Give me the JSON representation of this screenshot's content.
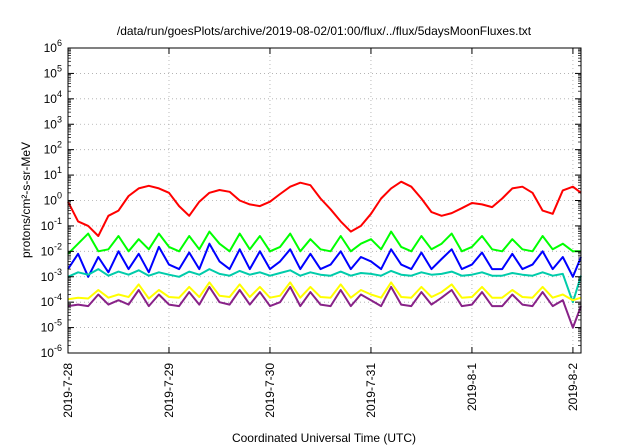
{
  "chart_data": {
    "type": "line",
    "title": "/data/run/goesPlots/archive/2019-08-02/01:00/flux/../flux/5daysMoonFluxes.txt",
    "xlabel": "Coordinated Universal Time (UTC)",
    "ylabel": "protons/cm²-s-sr-MeV",
    "yscale": "log",
    "ylim": [
      1e-06,
      1000000.0
    ],
    "yticks": [
      {
        "base": "10",
        "exp": "-6"
      },
      {
        "base": "10",
        "exp": "-5"
      },
      {
        "base": "10",
        "exp": "-4"
      },
      {
        "base": "10",
        "exp": "-3"
      },
      {
        "base": "10",
        "exp": "-2"
      },
      {
        "base": "10",
        "exp": "-1"
      },
      {
        "base": "10",
        "exp": "0"
      },
      {
        "base": "10",
        "exp": "1"
      },
      {
        "base": "10",
        "exp": "2"
      },
      {
        "base": "10",
        "exp": "3"
      },
      {
        "base": "10",
        "exp": "4"
      },
      {
        "base": "10",
        "exp": "5"
      },
      {
        "base": "10",
        "exp": "6"
      }
    ],
    "xlim_days": [
      0,
      5.08
    ],
    "xticks": [
      "2019-7-28",
      "2019-7-29",
      "2019-7-30",
      "2019-7-31",
      "2019-8-1",
      "2019-8-2"
    ],
    "grid": true,
    "series": [
      {
        "color": "#ff0000",
        "x": [
          0,
          0.1,
          0.2,
          0.3,
          0.4,
          0.5,
          0.6,
          0.7,
          0.8,
          0.9,
          1.0,
          1.1,
          1.2,
          1.3,
          1.4,
          1.5,
          1.6,
          1.7,
          1.8,
          1.9,
          2.0,
          2.1,
          2.2,
          2.3,
          2.4,
          2.5,
          2.6,
          2.7,
          2.8,
          2.9,
          3.0,
          3.1,
          3.2,
          3.3,
          3.4,
          3.5,
          3.6,
          3.7,
          3.8,
          3.9,
          4.0,
          4.1,
          4.2,
          4.3,
          4.4,
          4.5,
          4.6,
          4.7,
          4.8,
          4.9,
          5.0,
          5.08
        ],
        "values": [
          0.9,
          0.15,
          0.1,
          0.04,
          0.25,
          0.4,
          1.5,
          3,
          3.8,
          3,
          2,
          0.6,
          0.25,
          0.9,
          2,
          2.6,
          2.2,
          1,
          0.7,
          0.6,
          0.9,
          1.8,
          3.5,
          5,
          4,
          1.2,
          0.45,
          0.15,
          0.06,
          0.1,
          0.3,
          1.2,
          3,
          5.5,
          3.5,
          1.2,
          0.35,
          0.25,
          0.32,
          0.5,
          0.8,
          0.7,
          0.55,
          1.2,
          3,
          3.5,
          2,
          0.4,
          0.3,
          2.5,
          3.5,
          2
        ]
      },
      {
        "color": "#00ff00",
        "x": [
          0,
          0.1,
          0.2,
          0.3,
          0.4,
          0.5,
          0.6,
          0.7,
          0.8,
          0.9,
          1.0,
          1.1,
          1.2,
          1.3,
          1.4,
          1.5,
          1.6,
          1.7,
          1.8,
          1.9,
          2.0,
          2.1,
          2.2,
          2.3,
          2.4,
          2.5,
          2.6,
          2.7,
          2.8,
          2.9,
          3.0,
          3.1,
          3.2,
          3.3,
          3.4,
          3.5,
          3.6,
          3.7,
          3.8,
          3.9,
          4.0,
          4.1,
          4.2,
          4.3,
          4.4,
          4.5,
          4.6,
          4.7,
          4.8,
          4.9,
          5.0,
          5.08
        ],
        "values": [
          0.008,
          0.02,
          0.05,
          0.01,
          0.012,
          0.04,
          0.01,
          0.03,
          0.012,
          0.05,
          0.015,
          0.01,
          0.04,
          0.012,
          0.06,
          0.02,
          0.01,
          0.05,
          0.012,
          0.04,
          0.01,
          0.015,
          0.05,
          0.01,
          0.03,
          0.012,
          0.01,
          0.04,
          0.01,
          0.02,
          0.03,
          0.012,
          0.06,
          0.015,
          0.01,
          0.04,
          0.012,
          0.02,
          0.05,
          0.01,
          0.015,
          0.04,
          0.012,
          0.01,
          0.03,
          0.012,
          0.01,
          0.04,
          0.012,
          0.02,
          0.01,
          0.01
        ]
      },
      {
        "color": "#0000ff",
        "x": [
          0,
          0.1,
          0.2,
          0.3,
          0.4,
          0.5,
          0.6,
          0.7,
          0.8,
          0.9,
          1.0,
          1.1,
          1.2,
          1.3,
          1.4,
          1.5,
          1.6,
          1.7,
          1.8,
          1.9,
          2.0,
          2.1,
          2.2,
          2.3,
          2.4,
          2.5,
          2.6,
          2.7,
          2.8,
          2.9,
          3.0,
          3.1,
          3.2,
          3.3,
          3.4,
          3.5,
          3.6,
          3.7,
          3.8,
          3.9,
          4.0,
          4.1,
          4.2,
          4.3,
          4.4,
          4.5,
          4.6,
          4.7,
          4.8,
          4.9,
          5.0,
          5.08
        ],
        "values": [
          0.002,
          0.008,
          0.001,
          0.006,
          0.0015,
          0.01,
          0.002,
          0.008,
          0.0015,
          0.015,
          0.003,
          0.002,
          0.009,
          0.002,
          0.02,
          0.004,
          0.002,
          0.012,
          0.002,
          0.01,
          0.002,
          0.004,
          0.012,
          0.002,
          0.008,
          0.002,
          0.003,
          0.01,
          0.002,
          0.006,
          0.004,
          0.002,
          0.012,
          0.003,
          0.002,
          0.009,
          0.002,
          0.005,
          0.012,
          0.002,
          0.003,
          0.009,
          0.002,
          0.002,
          0.008,
          0.002,
          0.003,
          0.01,
          0.002,
          0.006,
          0.001,
          0.006
        ]
      },
      {
        "color": "#00ccaa",
        "x": [
          0,
          0.1,
          0.2,
          0.3,
          0.4,
          0.5,
          0.6,
          0.7,
          0.8,
          0.9,
          1.0,
          1.1,
          1.2,
          1.3,
          1.4,
          1.5,
          1.6,
          1.7,
          1.8,
          1.9,
          2.0,
          2.1,
          2.2,
          2.3,
          2.4,
          2.5,
          2.6,
          2.7,
          2.8,
          2.9,
          3.0,
          3.1,
          3.2,
          3.3,
          3.4,
          3.5,
          3.6,
          3.7,
          3.8,
          3.9,
          4.0,
          4.1,
          4.2,
          4.3,
          4.4,
          4.5,
          4.6,
          4.7,
          4.8,
          4.9,
          5.0,
          5.08
        ],
        "values": [
          0.001,
          0.0015,
          0.0012,
          0.002,
          0.0011,
          0.0016,
          0.0012,
          0.0018,
          0.0011,
          0.0015,
          0.0012,
          0.001,
          0.0016,
          0.0012,
          0.002,
          0.0013,
          0.0011,
          0.0017,
          0.0012,
          0.0015,
          0.0011,
          0.0014,
          0.0018,
          0.0011,
          0.0015,
          0.0012,
          0.0011,
          0.0016,
          0.0011,
          0.0014,
          0.0013,
          0.0011,
          0.0017,
          0.0012,
          0.0011,
          0.0015,
          0.0012,
          0.0013,
          0.0016,
          0.0011,
          0.0012,
          0.0015,
          0.0011,
          0.0011,
          0.0014,
          0.0012,
          0.0011,
          0.0015,
          0.0011,
          0.0013,
          0.0001,
          0.0011
        ]
      },
      {
        "color": "#ffff00",
        "x": [
          0,
          0.1,
          0.2,
          0.3,
          0.4,
          0.5,
          0.6,
          0.7,
          0.8,
          0.9,
          1.0,
          1.1,
          1.2,
          1.3,
          1.4,
          1.5,
          1.6,
          1.7,
          1.8,
          1.9,
          2.0,
          2.1,
          2.2,
          2.3,
          2.4,
          2.5,
          2.6,
          2.7,
          2.8,
          2.9,
          3.0,
          3.1,
          3.2,
          3.3,
          3.4,
          3.5,
          3.6,
          3.7,
          3.8,
          3.9,
          4.0,
          4.1,
          4.2,
          4.3,
          4.4,
          4.5,
          4.6,
          4.7,
          4.8,
          4.9,
          5.0,
          5.08
        ],
        "values": [
          0.00013,
          0.00015,
          0.00014,
          0.0003,
          0.00015,
          0.0002,
          0.00016,
          0.0005,
          0.00014,
          0.0003,
          0.00016,
          0.00015,
          0.0004,
          0.00016,
          0.0006,
          0.00018,
          0.00016,
          0.0005,
          0.00016,
          0.0004,
          0.00015,
          0.00018,
          0.0006,
          0.00015,
          0.0004,
          0.00016,
          0.00015,
          0.0005,
          0.00015,
          0.0003,
          0.0002,
          0.00015,
          0.0006,
          0.00016,
          0.00015,
          0.0004,
          0.00016,
          0.00025,
          0.0005,
          0.00015,
          0.00016,
          0.0004,
          0.00015,
          0.00015,
          0.0003,
          0.00016,
          0.00015,
          0.0004,
          0.00015,
          0.0002,
          0.00012,
          0.00015
        ]
      },
      {
        "color": "#882288",
        "x": [
          0,
          0.1,
          0.2,
          0.3,
          0.4,
          0.5,
          0.6,
          0.7,
          0.8,
          0.9,
          1.0,
          1.1,
          1.2,
          1.3,
          1.4,
          1.5,
          1.6,
          1.7,
          1.8,
          1.9,
          2.0,
          2.1,
          2.2,
          2.3,
          2.4,
          2.5,
          2.6,
          2.7,
          2.8,
          2.9,
          3.0,
          3.1,
          3.2,
          3.3,
          3.4,
          3.5,
          3.6,
          3.7,
          3.8,
          3.9,
          4.0,
          4.1,
          4.2,
          4.3,
          4.4,
          4.5,
          4.6,
          4.7,
          4.8,
          4.9,
          5.0,
          5.08
        ],
        "values": [
          7e-05,
          8e-05,
          7e-05,
          0.0002,
          8e-05,
          0.00012,
          8e-05,
          0.0003,
          7e-05,
          0.0002,
          8e-05,
          7e-05,
          0.00025,
          8e-05,
          0.0004,
          0.0001,
          8e-05,
          0.0003,
          8e-05,
          0.00025,
          7e-05,
          0.0001,
          0.0004,
          7e-05,
          0.00025,
          8e-05,
          7e-05,
          0.0003,
          7e-05,
          0.0002,
          0.00012,
          7e-05,
          0.0004,
          8e-05,
          7e-05,
          0.00025,
          8e-05,
          0.00015,
          0.0003,
          7e-05,
          8e-05,
          0.00025,
          7e-05,
          7e-05,
          0.0002,
          8e-05,
          7e-05,
          0.00025,
          7e-05,
          0.00012,
          1e-05,
          7e-05
        ]
      }
    ]
  }
}
